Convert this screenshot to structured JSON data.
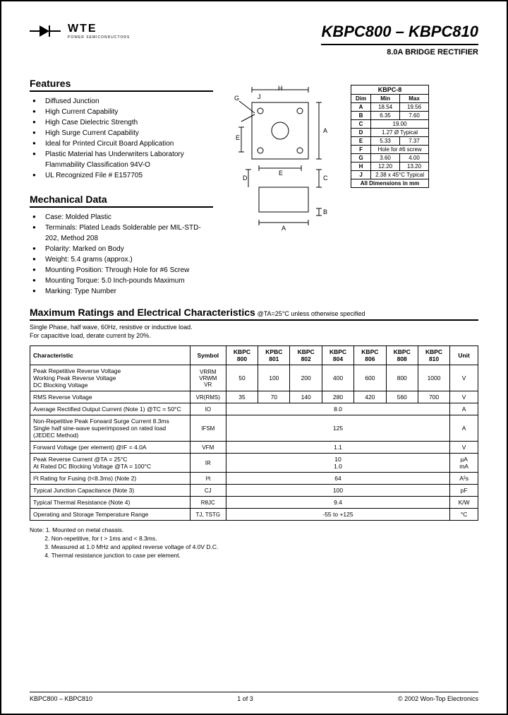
{
  "logo": {
    "brand": "WTE",
    "sub": "POWER SEMICONDUCTORS"
  },
  "title": "KBPC800 – KBPC810",
  "subtitle": "8.0A BRIDGE RECTIFIER",
  "features": {
    "heading": "Features",
    "items": [
      "Diffused Junction",
      "High Current Capability",
      "High Case Dielectric Strength",
      "High Surge Current Capability",
      "Ideal for Printed Circuit Board Application",
      "Plastic Material has Underwriters Laboratory Flammability Classification 94V-O",
      "UL Recognized File # E157705"
    ]
  },
  "mechdata": {
    "heading": "Mechanical Data",
    "items": [
      "Case: Molded Plastic",
      "Terminals: Plated Leads Solderable per MIL-STD-202, Method 208",
      "Polarity: Marked on Body",
      "Weight: 5.4 grams (approx.)",
      "Mounting Position: Through Hole for #6 Screw",
      "Mounting Torque: 5.0 Inch-pounds Maximum",
      "Marking: Type Number"
    ]
  },
  "dimtable": {
    "title": "KBPC-8",
    "headers": [
      "Dim",
      "Min",
      "Max"
    ],
    "rows": [
      [
        "A",
        "18.54",
        "19.56"
      ],
      [
        "B",
        "6.35",
        "7.60"
      ],
      [
        "C",
        "19.00",
        ""
      ],
      [
        "D",
        "1.27 Ø Typical",
        ""
      ],
      [
        "E",
        "5.33",
        "7.37"
      ],
      [
        "F",
        "Hole for #6 screw",
        ""
      ],
      [
        "G",
        "3.60",
        "4.00"
      ],
      [
        "H",
        "12.20",
        "13.20"
      ],
      [
        "J",
        "2.38 x 45°C Typical",
        ""
      ]
    ],
    "footer": "All Dimensions in mm"
  },
  "maxratings": {
    "heading": "Maximum Ratings and Electrical Characteristics",
    "condition": "@TA=25°C unless otherwise specified",
    "sub1": "Single Phase, half wave, 60Hz, resistive or inductive load.",
    "sub2": "For capacitive load, derate current by 20%.",
    "cols": [
      "Characteristic",
      "Symbol",
      "KBPC 800",
      "KPBC 801",
      "KBPC 802",
      "KBPC 804",
      "KBPC 806",
      "KBPC 808",
      "KBPC 810",
      "Unit"
    ],
    "rows": [
      {
        "char": "Peak Repetitive Reverse Voltage\nWorking Peak Reverse Voltage\nDC Blocking Voltage",
        "sym": "VRRM\nVRWM\nVR",
        "vals": [
          "50",
          "100",
          "200",
          "400",
          "600",
          "800",
          "1000"
        ],
        "unit": "V"
      },
      {
        "char": "RMS Reverse Voltage",
        "sym": "VR(RMS)",
        "vals": [
          "35",
          "70",
          "140",
          "280",
          "420",
          "560",
          "700"
        ],
        "unit": "V"
      },
      {
        "char": "Average Rectified Output Current (Note 1) @TC = 50°C",
        "sym": "IO",
        "span": "8.0",
        "unit": "A"
      },
      {
        "char": "Non-Repetitive Peak Forward Surge Current 8.3ms\nSingle half sine-wave superimposed on rated load\n(JEDEC Method)",
        "sym": "IFSM",
        "span": "125",
        "unit": "A"
      },
      {
        "char": "Forward Voltage (per element)            @IF = 4.0A",
        "sym": "VFM",
        "span": "1.1",
        "unit": "V"
      },
      {
        "char": "Peak Reverse Current            @TA = 25°C\nAt Rated DC Blocking Voltage    @TA = 100°C",
        "sym": "IR",
        "span": "10\n1.0",
        "unit": "µA\nmA"
      },
      {
        "char": "I²t Rating for Fusing (t<8.3ms) (Note 2)",
        "sym": "I²t",
        "span": "64",
        "unit": "A²s"
      },
      {
        "char": "Typical Junction Capacitance (Note 3)",
        "sym": "CJ",
        "span": "100",
        "unit": "pF"
      },
      {
        "char": "Typical Thermal Resistance (Note 4)",
        "sym": "RθJC",
        "span": "9.4",
        "unit": "K/W"
      },
      {
        "char": "Operating and Storage Temperature Range",
        "sym": "TJ, TSTG",
        "span": "-55 to +125",
        "unit": "°C"
      }
    ]
  },
  "notes": {
    "label": "Note:",
    "items": [
      "1. Mounted on metal chassis.",
      "2. Non-repetitive, for t > 1ms and < 8.3ms.",
      "3. Measured at 1.0 MHz and applied reverse voltage of 4.0V D.C.",
      "4. Thermal resistance junction to case per element."
    ]
  },
  "footer": {
    "left": "KBPC800 – KBPC810",
    "center": "1 of 3",
    "right": "© 2002 Won-Top Electronics"
  }
}
